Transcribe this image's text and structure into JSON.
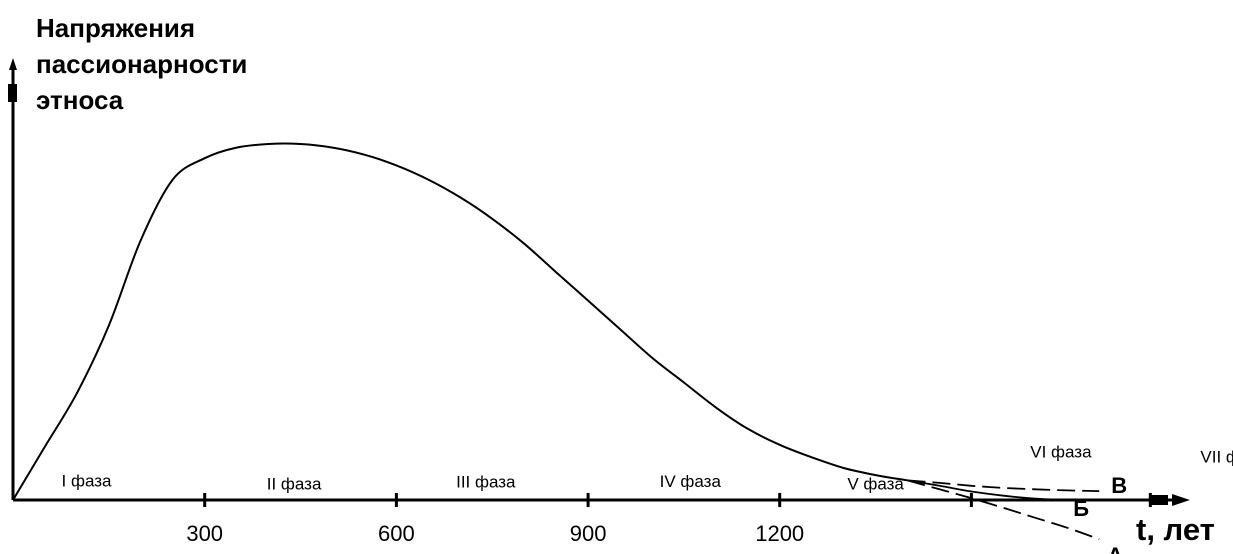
{
  "chart_data": {
    "type": "line",
    "ylabel_lines": [
      "Напряжения",
      "пассионарности",
      "этноса"
    ],
    "xlabel": "t, лет",
    "x_ticks": [
      300,
      600,
      900,
      1200
    ],
    "x_tick_labels": [
      "300",
      "600",
      "900",
      "1200"
    ],
    "xlim": [
      0,
      1900
    ],
    "ylim": [
      0,
      1
    ],
    "grid": false,
    "legend": "none",
    "main_series": {
      "x": [
        0,
        50,
        100,
        150,
        200,
        250,
        300,
        350,
        400,
        450,
        500,
        550,
        600,
        650,
        700,
        750,
        800,
        850,
        900,
        950,
        1000,
        1050,
        1100,
        1150,
        1200,
        1250,
        1300,
        1350,
        1400
      ],
      "y": [
        0,
        0.15,
        0.3,
        0.49,
        0.73,
        0.9,
        0.96,
        0.99,
        1.0,
        1.0,
        0.99,
        0.97,
        0.94,
        0.9,
        0.85,
        0.79,
        0.72,
        0.64,
        0.56,
        0.48,
        0.4,
        0.33,
        0.26,
        0.2,
        0.155,
        0.12,
        0.09,
        0.07,
        0.055
      ]
    },
    "branches": [
      {
        "name": "В",
        "style": "dashed",
        "x": [
          1400,
          1450,
          1500,
          1550,
          1600,
          1650,
          1700
        ],
        "y": [
          0.055,
          0.048,
          0.04,
          0.034,
          0.03,
          0.027,
          0.025
        ]
      },
      {
        "name": "Б",
        "style": "solid",
        "x": [
          1400,
          1450,
          1500,
          1550,
          1600,
          1650
        ],
        "y": [
          0.055,
          0.04,
          0.024,
          0.012,
          0.004,
          0.0
        ]
      },
      {
        "name": "А",
        "style": "dashed",
        "x": [
          1400,
          1450,
          1500,
          1550,
          1600,
          1650,
          1700
        ],
        "y": [
          0.055,
          0.03,
          0.005,
          -0.022,
          -0.05,
          -0.078,
          -0.11
        ]
      }
    ],
    "phase_ticks": [
      300,
      600,
      900,
      1200,
      1500,
      1780
    ],
    "phases": [
      {
        "label": "I фаза",
        "x": 115,
        "y": 0.038
      },
      {
        "label": "II фаза",
        "x": 440,
        "y": 0.03
      },
      {
        "label": "III фаза",
        "x": 740,
        "y": 0.035
      },
      {
        "label": "IV фаза",
        "x": 1060,
        "y": 0.037
      },
      {
        "label": "V фаза",
        "x": 1350,
        "y": 0.03
      },
      {
        "label": "VI фаза",
        "x": 1640,
        "y": 0.12
      },
      {
        "label": "VII фаза",
        "x": 1910,
        "y": 0.105
      }
    ]
  }
}
